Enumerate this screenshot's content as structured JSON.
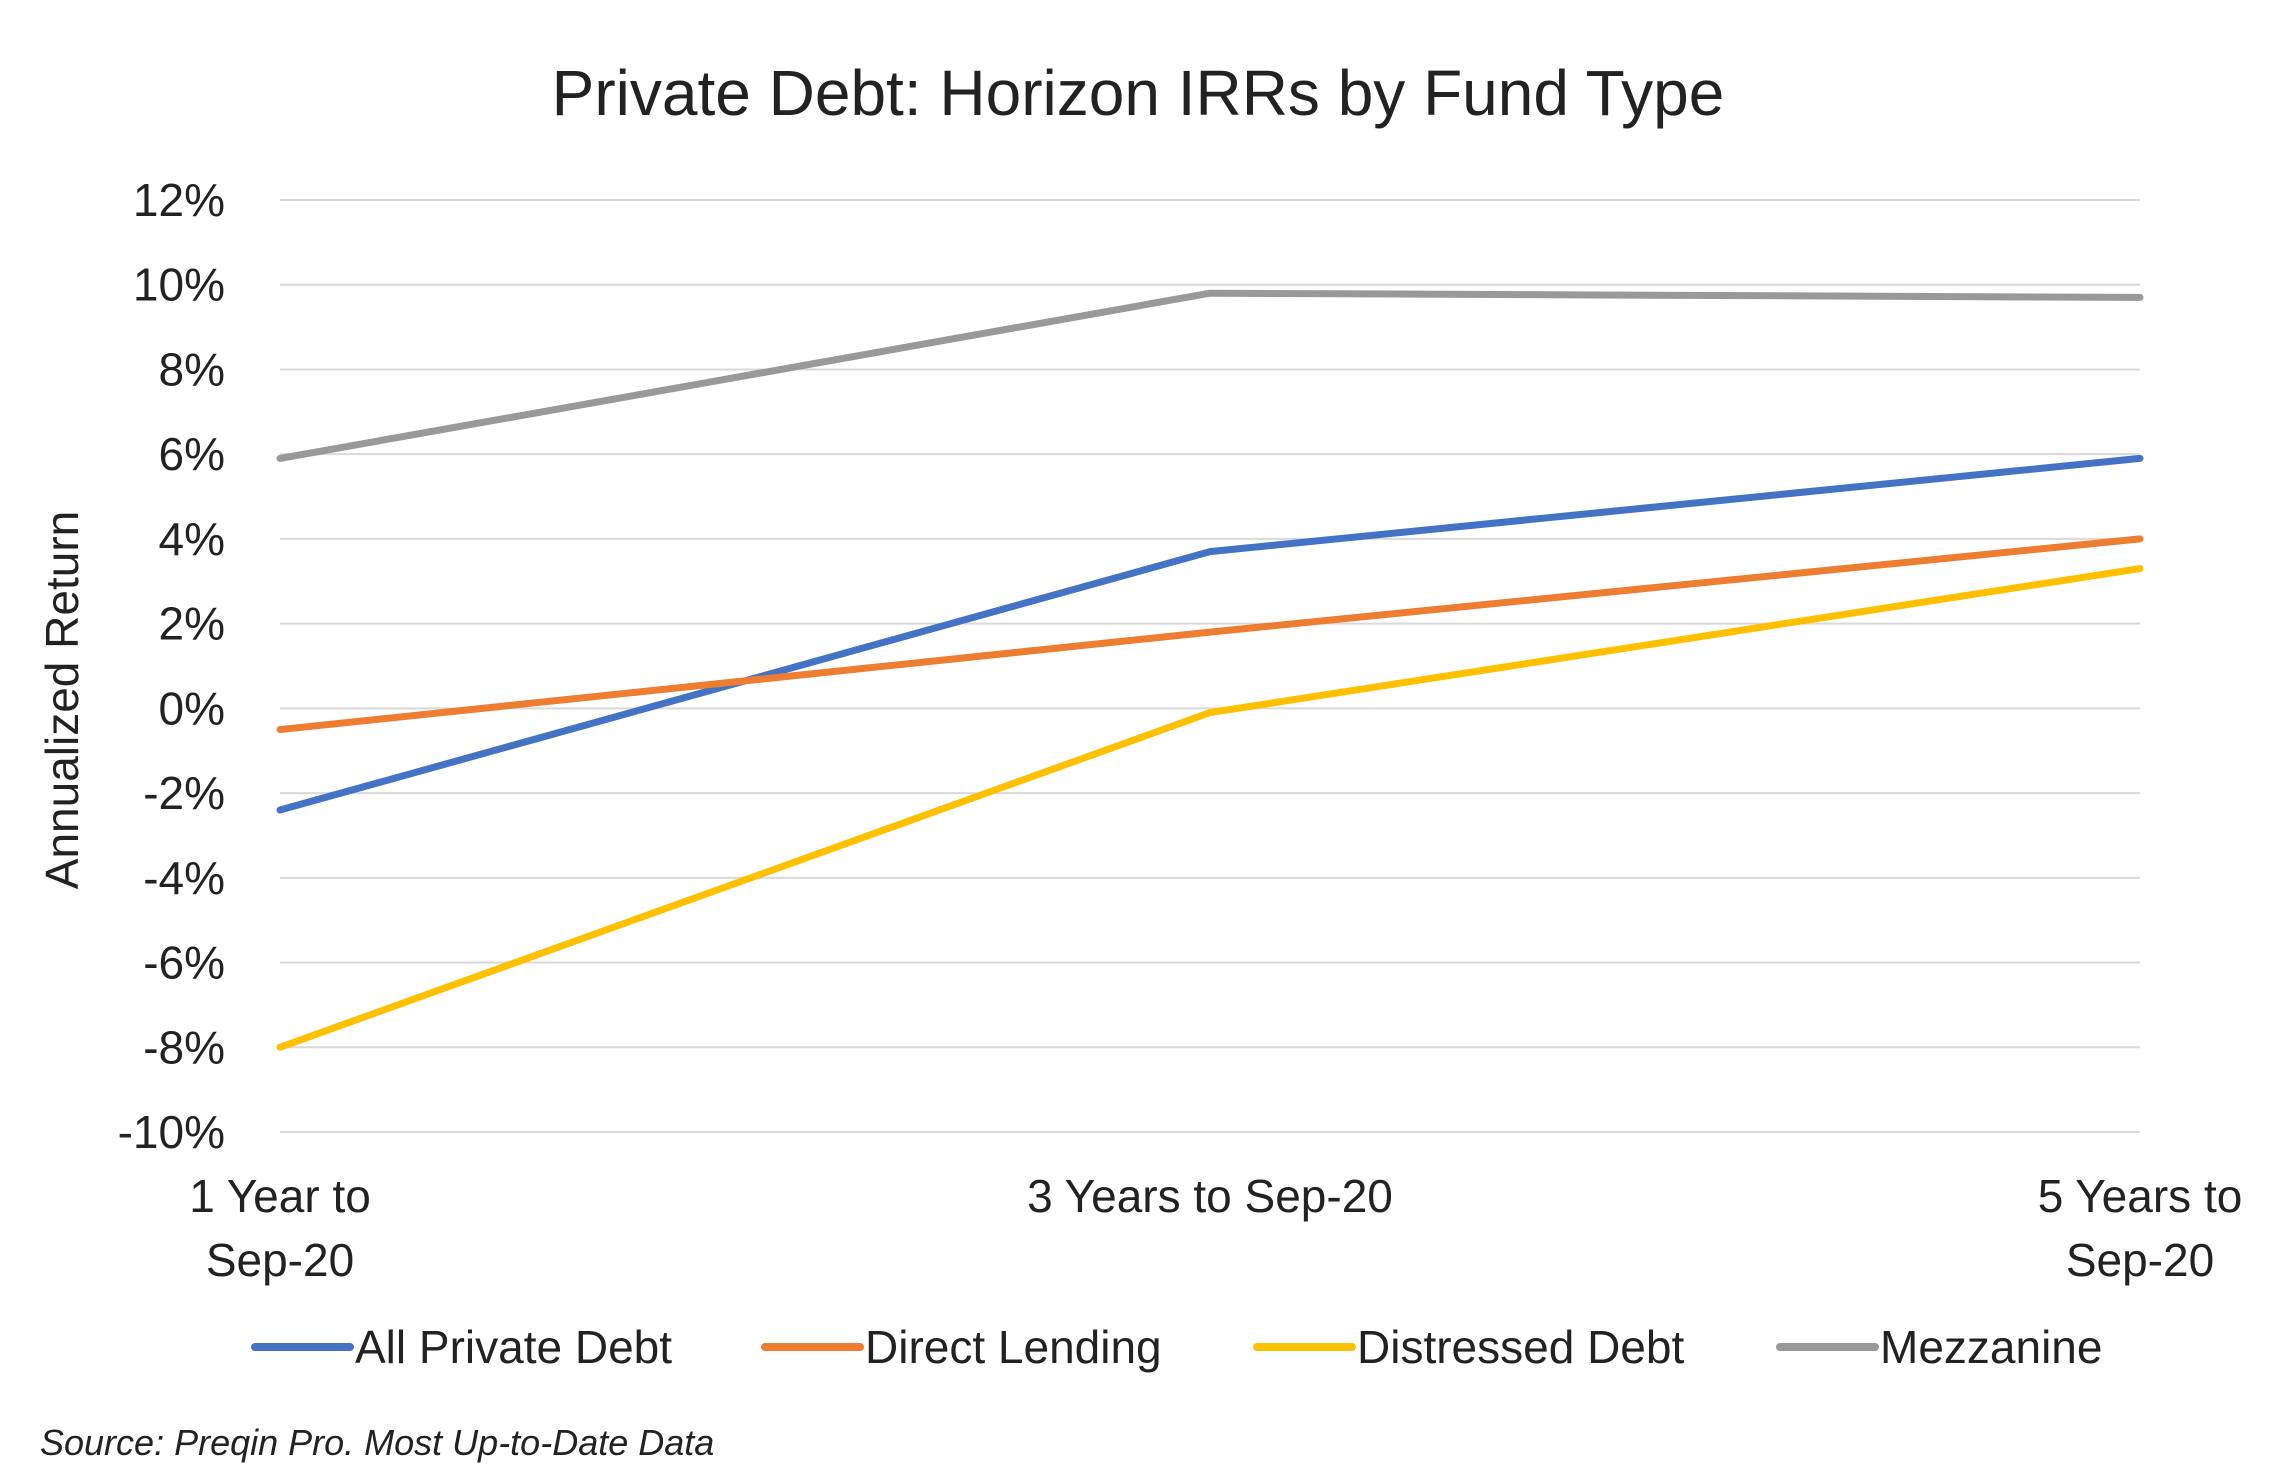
{
  "chart_data": {
    "type": "line",
    "title": "Private Debt: Horizon IRRs by Fund Type",
    "ylabel": "Annualized Return",
    "xlabel": "",
    "categories": [
      [
        "1 Year to",
        "Sep-20"
      ],
      [
        "3 Years to Sep-20"
      ],
      [
        "5 Years to",
        "Sep-20"
      ]
    ],
    "ylim": [
      -10,
      12
    ],
    "ytick_step": 2,
    "ytick_suffix": "%",
    "grid": true,
    "legend_position": "bottom",
    "series": [
      {
        "name": "All Private Debt",
        "color": "#4472C4",
        "values": [
          -2.4,
          3.7,
          5.9
        ]
      },
      {
        "name": "Direct Lending",
        "color": "#ED7D31",
        "values": [
          -0.5,
          1.8,
          4.0
        ]
      },
      {
        "name": "Distressed Debt",
        "color": "#FFC000",
        "values": [
          -8.0,
          -0.1,
          3.3
        ]
      },
      {
        "name": "Mezzanine",
        "color": "#999999",
        "values": [
          5.9,
          9.8,
          9.7
        ]
      }
    ],
    "source": "Source: Preqin Pro. Most Up-to-Date Data"
  }
}
